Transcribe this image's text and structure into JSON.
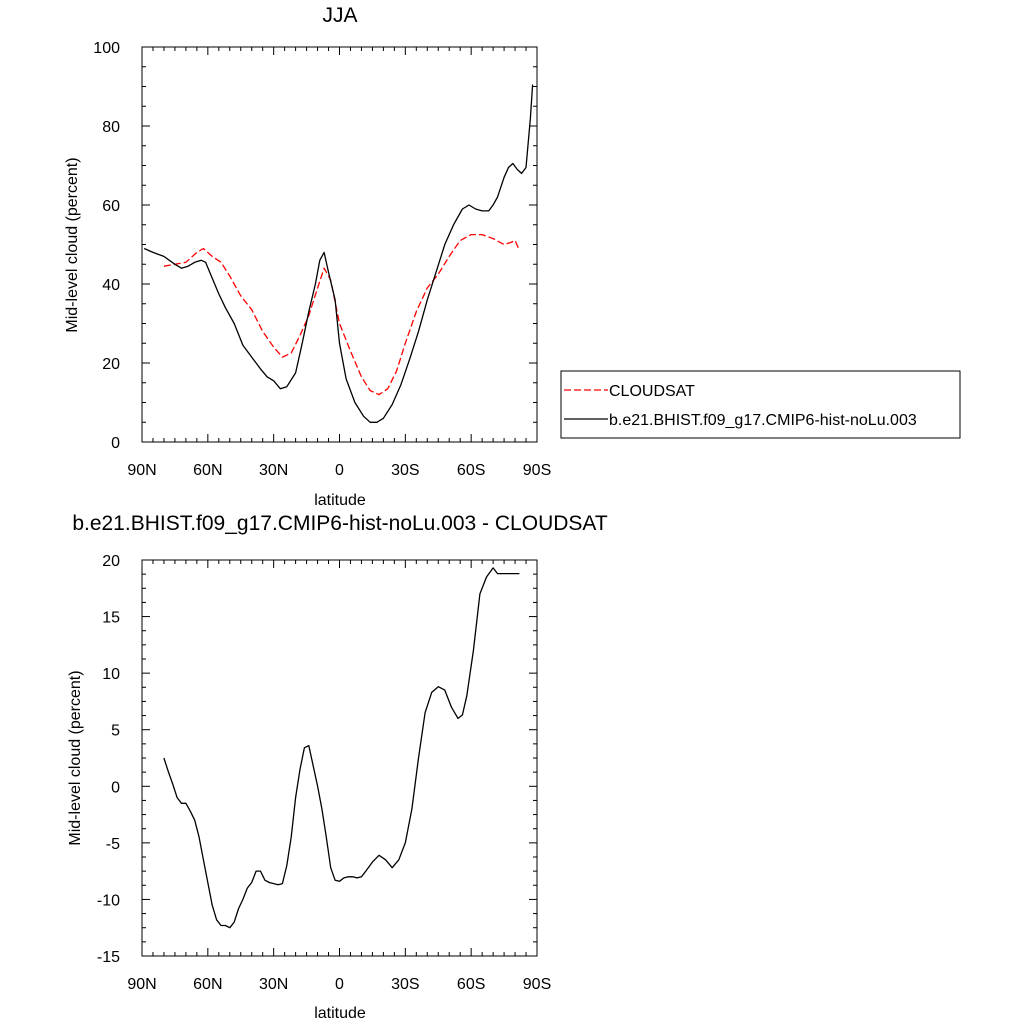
{
  "chart_data": [
    {
      "type": "line",
      "title": "JJA",
      "xlabel": "latitude",
      "ylabel": "Mid-level cloud (percent)",
      "xlim": [
        90,
        -90
      ],
      "ylim": [
        0,
        100
      ],
      "x_ticks": [
        90,
        60,
        30,
        0,
        -30,
        -60,
        -90
      ],
      "x_tick_labels": [
        "90N",
        "60N",
        "30N",
        "0",
        "30S",
        "60S",
        "90S"
      ],
      "y_ticks": [
        0,
        20,
        40,
        60,
        80,
        100
      ],
      "y_tick_labels": [
        "0",
        "20",
        "40",
        "60",
        "80",
        "100"
      ],
      "legend_position": "right, outside plot",
      "series": [
        {
          "name": "CLOUDSAT",
          "color": "#ff0000",
          "style": "dashed",
          "x": [
            80,
            75,
            70,
            65,
            62,
            58,
            54,
            50,
            45,
            40,
            35,
            30,
            26,
            22,
            18,
            14,
            10,
            7,
            4,
            0,
            -5,
            -10,
            -14,
            -18,
            -22,
            -26,
            -30,
            -35,
            -40,
            -45,
            -50,
            -55,
            -60,
            -65,
            -70,
            -75,
            -78,
            -80,
            -82
          ],
          "y": [
            44.5,
            45,
            45.5,
            48,
            49,
            47,
            45.5,
            42,
            37,
            33.5,
            28,
            24,
            21.5,
            22.5,
            27,
            32,
            39,
            44,
            41,
            30,
            23,
            16.5,
            13,
            12,
            13.5,
            18,
            25,
            33,
            39,
            42.5,
            47,
            51,
            52.5,
            52.5,
            51.5,
            50,
            50.5,
            51,
            48.5
          ]
        },
        {
          "name": "b.e21.BHIST.f09_g17.CMIP6-hist-noLu.003",
          "color": "#000000",
          "style": "solid",
          "x": [
            89,
            85,
            80,
            75,
            72,
            69,
            66,
            63,
            61,
            58,
            55,
            52,
            48,
            44,
            40,
            36,
            33,
            30,
            27,
            24,
            20,
            17,
            14,
            11,
            9,
            7,
            5,
            2,
            0,
            -3,
            -7,
            -11,
            -14,
            -17,
            -20,
            -24,
            -28,
            -32,
            -36,
            -40,
            -44,
            -48,
            -52,
            -56,
            -59,
            -62,
            -65,
            -68,
            -70,
            -72,
            -75,
            -77,
            -79,
            -81,
            -83,
            -85,
            -87,
            -88
          ],
          "y": [
            49,
            48,
            47,
            45,
            44,
            44.5,
            45.5,
            46,
            45.5,
            41.5,
            37.5,
            34,
            30,
            24.5,
            21.5,
            18.5,
            16.5,
            15.5,
            13.5,
            14,
            17.5,
            25,
            33,
            40,
            46,
            48,
            43,
            36,
            25,
            16,
            10,
            6.5,
            5,
            5,
            6,
            9.5,
            14.5,
            21,
            28,
            36,
            43,
            50,
            55,
            59,
            60,
            59,
            58.5,
            58.5,
            60,
            62,
            67,
            69.5,
            70.5,
            69,
            68,
            69.5,
            82,
            90.5
          ]
        }
      ]
    },
    {
      "type": "line",
      "title": "b.e21.BHIST.f09_g17.CMIP6-hist-noLu.003 - CLOUDSAT",
      "xlabel": "latitude",
      "ylabel": "Mid-level cloud (percent)",
      "xlim": [
        90,
        -90
      ],
      "ylim": [
        -15,
        20
      ],
      "x_ticks": [
        90,
        60,
        30,
        0,
        -30,
        -60,
        -90
      ],
      "x_tick_labels": [
        "90N",
        "60N",
        "30N",
        "0",
        "30S",
        "60S",
        "90S"
      ],
      "y_ticks": [
        -15,
        -10,
        -5,
        0,
        5,
        10,
        15,
        20
      ],
      "y_tick_labels": [
        "-15",
        "-10",
        "-5",
        "0",
        "5",
        "10",
        "15",
        "20"
      ],
      "series": [
        {
          "color": "#000000",
          "style": "solid",
          "x": [
            80,
            78,
            76,
            74,
            72,
            70,
            68,
            66,
            64,
            62,
            60,
            58,
            56,
            54,
            52,
            50,
            48,
            46,
            44,
            42,
            40,
            38,
            36,
            34,
            32,
            30,
            28,
            26,
            24,
            22,
            20,
            18,
            16,
            14,
            12,
            10,
            8,
            6,
            4,
            2,
            0,
            -2,
            -4,
            -6,
            -8,
            -10,
            -12,
            -15,
            -18,
            -21,
            -24,
            -27,
            -30,
            -33,
            -36,
            -39,
            -42,
            -45,
            -48,
            -51,
            -54,
            -56,
            -58,
            -61,
            -64,
            -67,
            -70,
            -72,
            -74,
            -76,
            -78,
            -80,
            -82
          ],
          "y": [
            2.5,
            1.3,
            0.2,
            -1.0,
            -1.5,
            -1.5,
            -2.2,
            -3.0,
            -4.5,
            -6.5,
            -8.5,
            -10.5,
            -11.8,
            -12.3,
            -12.3,
            -12.5,
            -12.0,
            -10.8,
            -10.0,
            -9.0,
            -8.5,
            -7.5,
            -7.5,
            -8.3,
            -8.5,
            -8.6,
            -8.7,
            -8.6,
            -7.0,
            -4.5,
            -1.0,
            1.5,
            3.4,
            3.6,
            1.8,
            0.0,
            -2.0,
            -4.5,
            -7.2,
            -8.3,
            -8.4,
            -8.1,
            -8.0,
            -8.0,
            -8.1,
            -8.0,
            -7.5,
            -6.7,
            -6.1,
            -6.5,
            -7.2,
            -6.5,
            -5.0,
            -2.0,
            2.5,
            6.5,
            8.3,
            8.8,
            8.5,
            7.0,
            6.0,
            6.3,
            8.0,
            12.0,
            17.0,
            18.5,
            19.3,
            18.8,
            18.8,
            18.8,
            18.8,
            18.8,
            18.8
          ]
        }
      ]
    }
  ]
}
